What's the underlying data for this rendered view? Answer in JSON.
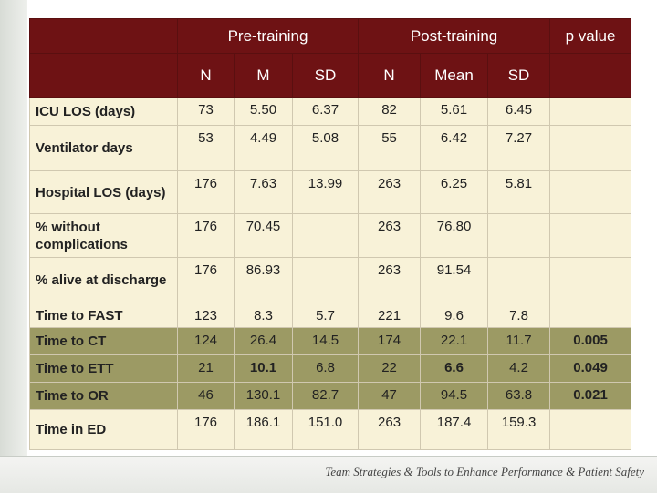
{
  "header": {
    "groups": [
      "Pre-training",
      "Post-training",
      "p value"
    ],
    "sub": [
      "N",
      "M",
      "SD",
      "N",
      "Mean",
      "SD"
    ]
  },
  "rows": [
    {
      "label": "ICU LOS (days)",
      "cells": [
        "73",
        "5.50",
        "6.37",
        "82",
        "5.61",
        "6.45"
      ],
      "p": ""
    },
    {
      "label": "Ventilator days",
      "cells": [
        "53",
        "4.49",
        "5.08",
        "55",
        "6.42",
        "7.27"
      ],
      "p": ""
    },
    {
      "label": "Hospital LOS (days)",
      "cells": [
        "176",
        "7.63",
        "13.99",
        "263",
        "6.25",
        "5.81"
      ],
      "p": ""
    },
    {
      "label": "% without complications",
      "cells": [
        "176",
        "70.45",
        "",
        "263",
        "76.80",
        ""
      ],
      "p": ""
    },
    {
      "label": "% alive at discharge",
      "cells": [
        "176",
        "86.93",
        "",
        "263",
        "91.54",
        ""
      ],
      "p": ""
    },
    {
      "label": "Time to FAST",
      "cells": [
        "123",
        "8.3",
        "5.7",
        "221",
        "9.6",
        "7.8"
      ],
      "p": ""
    },
    {
      "label": "Time to CT",
      "cells": [
        "124",
        "26.4",
        "14.5",
        "174",
        "22.1",
        "11.7"
      ],
      "p": "0.005"
    },
    {
      "label": "Time to ETT",
      "cells": [
        "21",
        "10.1",
        "6.8",
        "22",
        "6.6",
        "4.2"
      ],
      "p": "0.049"
    },
    {
      "label": "Time to OR",
      "cells": [
        "46",
        "130.1",
        "82.7",
        "47",
        "94.5",
        "63.8"
      ],
      "p": "0.021"
    },
    {
      "label": "Time in ED",
      "cells": [
        "176",
        "186.1",
        "151.0",
        "263",
        "187.4",
        "159.3"
      ],
      "p": ""
    }
  ],
  "footer": "Team Strategies & Tools to Enhance Performance & Patient Safety"
}
